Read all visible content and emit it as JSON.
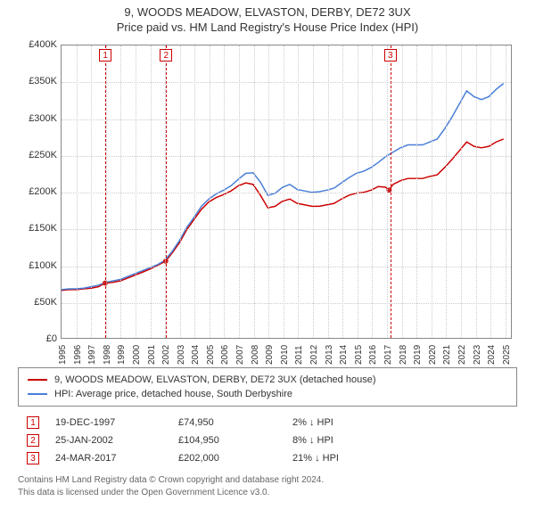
{
  "title": {
    "line1": "9, WOODS MEADOW, ELVASTON, DERBY, DE72 3UX",
    "line2": "Price paid vs. HM Land Registry's House Price Index (HPI)"
  },
  "chart": {
    "type": "line",
    "background_color": "#ffffff",
    "grid_color": "#d0d0d0",
    "axis_color": "#888888",
    "xlim": [
      1995,
      2025.5
    ],
    "xtick_step": 1,
    "xticks": [
      1995,
      1996,
      1997,
      1998,
      1999,
      2000,
      2001,
      2002,
      2003,
      2004,
      2005,
      2006,
      2007,
      2008,
      2009,
      2010,
      2011,
      2012,
      2013,
      2014,
      2015,
      2016,
      2017,
      2018,
      2019,
      2020,
      2021,
      2022,
      2023,
      2024,
      2025
    ],
    "ylim": [
      0,
      400000
    ],
    "ytick_step": 50000,
    "yticks": [
      {
        "v": 0,
        "l": "£0"
      },
      {
        "v": 50000,
        "l": "£50K"
      },
      {
        "v": 100000,
        "l": "£100K"
      },
      {
        "v": 150000,
        "l": "£150K"
      },
      {
        "v": 200000,
        "l": "£200K"
      },
      {
        "v": 250000,
        "l": "£250K"
      },
      {
        "v": 300000,
        "l": "£300K"
      },
      {
        "v": 350000,
        "l": "£350K"
      },
      {
        "v": 400000,
        "l": "£400K"
      }
    ],
    "yaxis_prefix": "£",
    "label_fontsize": 11,
    "tick_fontsize": 10,
    "series": [
      {
        "name": "price_paid",
        "label": "9, WOODS MEADOW, ELVASTON, DERBY, DE72 3UX (detached house)",
        "color": "#cc0000",
        "line_width": 1.5,
        "data": [
          [
            1995.0,
            65000
          ],
          [
            1995.5,
            66000
          ],
          [
            1996.0,
            66000
          ],
          [
            1996.5,
            67000
          ],
          [
            1997.0,
            68000
          ],
          [
            1997.5,
            70000
          ],
          [
            1997.96,
            74950
          ],
          [
            1998.5,
            76000
          ],
          [
            1999.0,
            78000
          ],
          [
            1999.5,
            82000
          ],
          [
            2000.0,
            86000
          ],
          [
            2000.5,
            90000
          ],
          [
            2001.0,
            94000
          ],
          [
            2001.5,
            99000
          ],
          [
            2002.07,
            104950
          ],
          [
            2002.5,
            116000
          ],
          [
            2003.0,
            130000
          ],
          [
            2003.5,
            148000
          ],
          [
            2004.0,
            162000
          ],
          [
            2004.5,
            176000
          ],
          [
            2005.0,
            186000
          ],
          [
            2005.5,
            192000
          ],
          [
            2006.0,
            196000
          ],
          [
            2006.5,
            201000
          ],
          [
            2007.0,
            208000
          ],
          [
            2007.5,
            212000
          ],
          [
            2008.0,
            210000
          ],
          [
            2008.5,
            195000
          ],
          [
            2009.0,
            178000
          ],
          [
            2009.5,
            180000
          ],
          [
            2010.0,
            187000
          ],
          [
            2010.5,
            190000
          ],
          [
            2011.0,
            184000
          ],
          [
            2011.5,
            182000
          ],
          [
            2012.0,
            180000
          ],
          [
            2012.5,
            180000
          ],
          [
            2013.0,
            182000
          ],
          [
            2013.5,
            184000
          ],
          [
            2014.0,
            190000
          ],
          [
            2014.5,
            195000
          ],
          [
            2015.0,
            198000
          ],
          [
            2015.5,
            199000
          ],
          [
            2016.0,
            202000
          ],
          [
            2016.5,
            207000
          ],
          [
            2017.0,
            206000
          ],
          [
            2017.23,
            202000
          ],
          [
            2017.5,
            210000
          ],
          [
            2018.0,
            215000
          ],
          [
            2018.5,
            218000
          ],
          [
            2019.0,
            218000
          ],
          [
            2019.5,
            218000
          ],
          [
            2020.0,
            221000
          ],
          [
            2020.5,
            223000
          ],
          [
            2021.0,
            233000
          ],
          [
            2021.5,
            244000
          ],
          [
            2022.0,
            256000
          ],
          [
            2022.5,
            268000
          ],
          [
            2023.0,
            262000
          ],
          [
            2023.5,
            260000
          ],
          [
            2024.0,
            262000
          ],
          [
            2024.5,
            268000
          ],
          [
            2025.0,
            272000
          ]
        ]
      },
      {
        "name": "hpi",
        "label": "HPI: Average price, detached house, South Derbyshire",
        "color": "#4a7fd8",
        "line_width": 1.5,
        "data": [
          [
            1995.0,
            66000
          ],
          [
            1995.5,
            67000
          ],
          [
            1996.0,
            67000
          ],
          [
            1996.5,
            68000
          ],
          [
            1997.0,
            70000
          ],
          [
            1997.5,
            72000
          ],
          [
            1998.0,
            76000
          ],
          [
            1998.5,
            78000
          ],
          [
            1999.0,
            80000
          ],
          [
            1999.5,
            84000
          ],
          [
            2000.0,
            88000
          ],
          [
            2000.5,
            92000
          ],
          [
            2001.0,
            96000
          ],
          [
            2001.5,
            100000
          ],
          [
            2002.0,
            106000
          ],
          [
            2002.5,
            118000
          ],
          [
            2003.0,
            133000
          ],
          [
            2003.5,
            151000
          ],
          [
            2004.0,
            165000
          ],
          [
            2004.5,
            180000
          ],
          [
            2005.0,
            190000
          ],
          [
            2005.5,
            197000
          ],
          [
            2006.0,
            202000
          ],
          [
            2006.5,
            208000
          ],
          [
            2007.0,
            217000
          ],
          [
            2007.5,
            225000
          ],
          [
            2008.0,
            226000
          ],
          [
            2008.5,
            213000
          ],
          [
            2009.0,
            195000
          ],
          [
            2009.5,
            198000
          ],
          [
            2010.0,
            206000
          ],
          [
            2010.5,
            210000
          ],
          [
            2011.0,
            203000
          ],
          [
            2011.5,
            201000
          ],
          [
            2012.0,
            199000
          ],
          [
            2012.5,
            200000
          ],
          [
            2013.0,
            202000
          ],
          [
            2013.5,
            205000
          ],
          [
            2014.0,
            212000
          ],
          [
            2014.5,
            219000
          ],
          [
            2015.0,
            225000
          ],
          [
            2015.5,
            228000
          ],
          [
            2016.0,
            233000
          ],
          [
            2016.5,
            240000
          ],
          [
            2017.0,
            248000
          ],
          [
            2017.5,
            254000
          ],
          [
            2018.0,
            260000
          ],
          [
            2018.5,
            264000
          ],
          [
            2019.0,
            264000
          ],
          [
            2019.5,
            264000
          ],
          [
            2020.0,
            268000
          ],
          [
            2020.5,
            272000
          ],
          [
            2021.0,
            286000
          ],
          [
            2021.5,
            302000
          ],
          [
            2022.0,
            320000
          ],
          [
            2022.5,
            338000
          ],
          [
            2023.0,
            330000
          ],
          [
            2023.5,
            326000
          ],
          [
            2024.0,
            330000
          ],
          [
            2024.5,
            340000
          ],
          [
            2025.0,
            348000
          ]
        ]
      }
    ],
    "sale_markers": [
      {
        "badge": "1",
        "x": 1997.96,
        "y": 74950
      },
      {
        "badge": "2",
        "x": 2002.07,
        "y": 104950
      },
      {
        "badge": "3",
        "x": 2017.23,
        "y": 202000
      }
    ],
    "marker_color": "#cc0000",
    "marker_radius": 3,
    "vline_color": "#cc0000",
    "vline_dash": "4,3"
  },
  "legend": {
    "items": [
      {
        "label": "9, WOODS MEADOW, ELVASTON, DERBY, DE72 3UX (detached house)",
        "color": "#cc0000"
      },
      {
        "label": "HPI: Average price, detached house, South Derbyshire",
        "color": "#4a7fd8"
      }
    ]
  },
  "reference_rows": [
    {
      "badge": "1",
      "date": "19-DEC-1997",
      "price": "£74,950",
      "delta": "2% ↓ HPI"
    },
    {
      "badge": "2",
      "date": "25-JAN-2002",
      "price": "£104,950",
      "delta": "8% ↓ HPI"
    },
    {
      "badge": "3",
      "date": "24-MAR-2017",
      "price": "£202,000",
      "delta": "21% ↓ HPI"
    }
  ],
  "footer": {
    "line1": "Contains HM Land Registry data © Crown copyright and database right 2024.",
    "line2": "This data is licensed under the Open Government Licence v3.0."
  }
}
